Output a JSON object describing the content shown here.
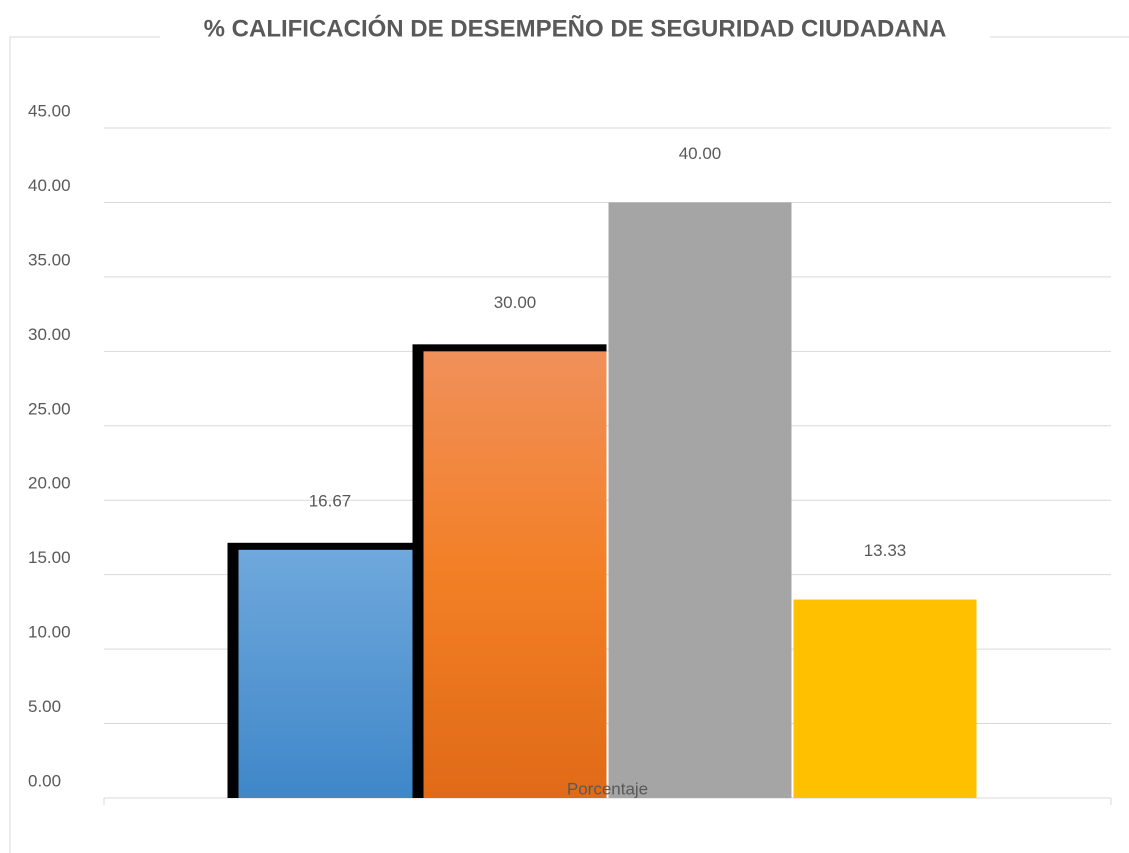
{
  "chart_data": {
    "type": "bar",
    "title": "% CALIFICACIÓN DE DESEMPEÑO DE SEGURIDAD CIUDADANA",
    "categories": [
      "Porcentaje"
    ],
    "series": [
      {
        "color": "#5b9bd5",
        "border": "#000000",
        "values": [
          16.67
        ],
        "value_labels": [
          "16.67"
        ]
      },
      {
        "color": "#ed7d31",
        "border": "#000000",
        "values": [
          30
        ],
        "value_labels": [
          "30.00"
        ]
      },
      {
        "color": "#a5a5a5",
        "values": [
          40
        ],
        "value_labels": [
          "40.00"
        ]
      },
      {
        "color": "#ffc000",
        "values": [
          13.33
        ],
        "value_labels": [
          "13.33"
        ]
      }
    ],
    "ylim": [
      0,
      45
    ],
    "yticks": [
      {
        "value": 0,
        "label": "0.00"
      },
      {
        "value": 5,
        "label": "5.00"
      },
      {
        "value": 10,
        "label": "10.00"
      },
      {
        "value": 15,
        "label": "15.00"
      },
      {
        "value": 20,
        "label": "20.00"
      },
      {
        "value": 25,
        "label": "25.00"
      },
      {
        "value": 30,
        "label": "30.00"
      },
      {
        "value": 35,
        "label": "35.00"
      },
      {
        "value": 40,
        "label": "40.00"
      },
      {
        "value": 45,
        "label": "45.00"
      }
    ],
    "grid": true
  }
}
